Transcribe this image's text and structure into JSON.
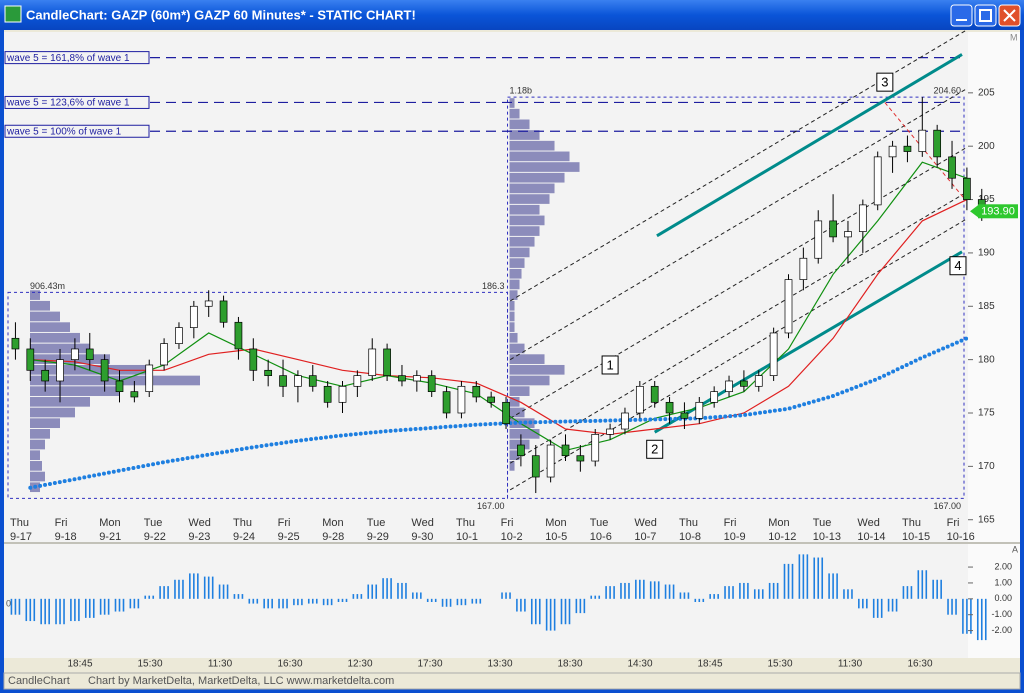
{
  "window": {
    "title": "CandleChart: GAZP (60m*) GAZP 60 Minutes* - STATIC CHART!",
    "corner_mark": "M",
    "panel_mark": "A",
    "panel_zero": "0",
    "status_left": "CandleChart",
    "status_right": "Chart by MarketDelta, MarketDelta, LLC www.marketdelta.com"
  },
  "chart_data": {
    "type": "candlestick",
    "ylim": [
      163.1,
      210.7
    ],
    "yticks": [
      165,
      170,
      175,
      180,
      185,
      190,
      195,
      200,
      205
    ],
    "up_color": "#ffffff",
    "down_color": "#2e9e2e",
    "wick_color": "#000000",
    "days": [
      {
        "day": "Thu",
        "date": "9-17",
        "open": [
          182,
          181,
          179
        ],
        "high": [
          183.5,
          182,
          180
        ],
        "low": [
          180,
          178,
          177
        ],
        "close": [
          181,
          179,
          178
        ],
        "oscillator": [
          -1.0,
          -1.4,
          -1.6
        ]
      },
      {
        "day": "Fri",
        "date": "9-18",
        "open": [
          178,
          180,
          181
        ],
        "high": [
          181,
          182,
          182.5
        ],
        "low": [
          176,
          179,
          179
        ],
        "close": [
          180,
          181,
          180
        ],
        "oscillator": [
          -1.6,
          -1.4,
          -1.2
        ]
      },
      {
        "day": "Mon",
        "date": "9-21",
        "open": [
          180,
          178,
          177
        ],
        "high": [
          180.5,
          179,
          178
        ],
        "low": [
          177,
          176,
          176
        ],
        "close": [
          178,
          177,
          176.5
        ],
        "oscillator": [
          -1.0,
          -0.8,
          -0.6
        ]
      },
      {
        "day": "Tue",
        "date": "9-22",
        "open": [
          177,
          179.5,
          181.5
        ],
        "high": [
          180,
          182,
          183.5
        ],
        "low": [
          176.5,
          179,
          181
        ],
        "close": [
          179.5,
          181.5,
          183
        ],
        "oscillator": [
          0.2,
          0.8,
          1.2
        ]
      },
      {
        "day": "Wed",
        "date": "9-23",
        "open": [
          183,
          185,
          185.5
        ],
        "high": [
          185.5,
          186.5,
          186
        ],
        "low": [
          182,
          184,
          183
        ],
        "close": [
          185,
          185.5,
          183.5
        ],
        "oscillator": [
          1.6,
          1.4,
          0.9
        ]
      },
      {
        "day": "Thu",
        "date": "9-24",
        "open": [
          183.5,
          181,
          179
        ],
        "high": [
          184,
          182,
          180
        ],
        "low": [
          180,
          178,
          177.5
        ],
        "close": [
          181,
          179,
          178.5
        ],
        "oscillator": [
          0.3,
          -0.3,
          -0.6
        ]
      },
      {
        "day": "Fri",
        "date": "9-25",
        "open": [
          178.5,
          177.5,
          178.5
        ],
        "high": [
          180,
          179,
          179.5
        ],
        "low": [
          176.5,
          176,
          177
        ],
        "close": [
          177.5,
          178.5,
          177.5
        ],
        "oscillator": [
          -0.6,
          -0.4,
          -0.3
        ]
      },
      {
        "day": "Mon",
        "date": "9-28",
        "open": [
          177.5,
          176,
          177.5
        ],
        "high": [
          178,
          178,
          179
        ],
        "low": [
          175.5,
          175,
          176.5
        ],
        "close": [
          176,
          177.5,
          178.5
        ],
        "oscillator": [
          -0.4,
          -0.2,
          0.3
        ]
      },
      {
        "day": "Tue",
        "date": "9-29",
        "open": [
          178.5,
          181,
          178.5
        ],
        "high": [
          182,
          181.5,
          179.5
        ],
        "low": [
          178,
          178,
          177.5
        ],
        "close": [
          181,
          178.5,
          178
        ],
        "oscillator": [
          0.9,
          1.3,
          1.0
        ]
      },
      {
        "day": "Wed",
        "date": "9-30",
        "open": [
          178,
          178.5,
          177
        ],
        "high": [
          179,
          179,
          177.5
        ],
        "low": [
          177,
          176.5,
          174.5
        ],
        "close": [
          178.5,
          177,
          175
        ],
        "oscillator": [
          0.4,
          -0.2,
          -0.5
        ]
      },
      {
        "day": "Thu",
        "date": "10-1",
        "open": [
          175,
          177.5,
          176.5
        ],
        "high": [
          178,
          178,
          177
        ],
        "low": [
          174.5,
          176,
          175.5
        ],
        "close": [
          177.5,
          176.5,
          176
        ],
        "oscillator": [
          -0.4,
          -0.3,
          0.0
        ]
      },
      {
        "day": "Fri",
        "date": "10-2",
        "open": [
          176,
          172,
          171
        ],
        "high": [
          176.5,
          173,
          172
        ],
        "low": [
          173.5,
          170,
          167.5
        ],
        "close": [
          174,
          171,
          169
        ],
        "oscillator": [
          0.4,
          -0.8,
          -1.6
        ]
      },
      {
        "day": "Mon",
        "date": "10-5",
        "open": [
          169,
          172,
          171
        ],
        "high": [
          172.5,
          173,
          172
        ],
        "low": [
          168.5,
          170.5,
          169.5
        ],
        "close": [
          172,
          171,
          170.5
        ],
        "oscillator": [
          -2.0,
          -1.6,
          -0.9
        ]
      },
      {
        "day": "Tue",
        "date": "10-6",
        "open": [
          170.5,
          173,
          173.5
        ],
        "high": [
          173.5,
          174,
          175.5
        ],
        "low": [
          170,
          172.5,
          173
        ],
        "close": [
          173,
          173.5,
          175
        ],
        "oscillator": [
          0.2,
          0.8,
          1.0
        ]
      },
      {
        "day": "Wed",
        "date": "10-7",
        "open": [
          175,
          177.5,
          176
        ],
        "high": [
          178,
          178,
          176.5
        ],
        "low": [
          174.5,
          175.5,
          174
        ],
        "close": [
          177.5,
          176,
          175
        ],
        "oscillator": [
          1.2,
          1.1,
          0.9
        ]
      },
      {
        "day": "Thu",
        "date": "10-8",
        "open": [
          175,
          174.5,
          176
        ],
        "high": [
          176,
          176.5,
          177.5
        ],
        "low": [
          173.5,
          174,
          175.5
        ],
        "close": [
          174.5,
          176,
          177
        ],
        "oscillator": [
          0.4,
          -0.2,
          0.3
        ]
      },
      {
        "day": "Fri",
        "date": "10-9",
        "open": [
          177,
          178,
          177.5
        ],
        "high": [
          178.5,
          179,
          179
        ],
        "low": [
          176.5,
          177,
          177
        ],
        "close": [
          178,
          177.5,
          178.5
        ],
        "oscillator": [
          0.8,
          1.0,
          0.6
        ]
      },
      {
        "day": "Mon",
        "date": "10-12",
        "open": [
          178.5,
          182.5,
          187.5
        ],
        "high": [
          183,
          188,
          190.5
        ],
        "low": [
          178,
          182,
          186.5
        ],
        "close": [
          182.5,
          187.5,
          189.5
        ],
        "oscillator": [
          1.0,
          2.2,
          2.8
        ]
      },
      {
        "day": "Tue",
        "date": "10-13",
        "open": [
          189.5,
          193,
          191.5
        ],
        "high": [
          194,
          195.5,
          193
        ],
        "low": [
          189,
          191,
          189
        ],
        "close": [
          193,
          191.5,
          192
        ],
        "oscillator": [
          2.6,
          1.6,
          0.6
        ]
      },
      {
        "day": "Wed",
        "date": "10-14",
        "open": [
          192,
          194.5,
          199
        ],
        "high": [
          195,
          199.5,
          200.5
        ],
        "low": [
          190,
          194,
          197.5
        ],
        "close": [
          194.5,
          199,
          200
        ],
        "oscillator": [
          -0.6,
          -1.2,
          -0.8
        ]
      },
      {
        "day": "Thu",
        "date": "10-15",
        "open": [
          200,
          199.5,
          201.5
        ],
        "high": [
          201,
          204.6,
          202
        ],
        "low": [
          198.5,
          199,
          198
        ],
        "close": [
          199.5,
          201.5,
          199
        ],
        "oscillator": [
          0.8,
          1.8,
          1.2
        ]
      },
      {
        "day": "Fri",
        "date": "10-16",
        "open": [
          199,
          197,
          195
        ],
        "high": [
          200.5,
          198,
          196
        ],
        "low": [
          196,
          194,
          193
        ],
        "close": [
          197,
          195,
          193.9
        ],
        "oscillator": [
          -1.0,
          -2.2,
          -2.6
        ]
      }
    ],
    "moving_averages": [
      {
        "color": "#e02020",
        "style": "solid",
        "values": [
          180,
          179.8,
          179,
          179,
          180.5,
          181,
          180,
          179,
          178.5,
          178.3,
          177.8,
          176,
          173.5,
          173,
          173.5,
          174,
          175,
          177.5,
          182,
          188,
          193,
          195
        ]
      },
      {
        "color": "#109010",
        "style": "solid",
        "values": [
          180,
          179.5,
          178,
          179.5,
          182.5,
          180.5,
          178.5,
          177.5,
          178.5,
          177.8,
          176.8,
          174,
          171.5,
          172.5,
          174.5,
          175.5,
          177,
          181,
          188,
          193,
          198.5,
          197
        ]
      },
      {
        "color": "#1e7fe0",
        "style": "dotted",
        "values": [
          168,
          168.8,
          169.6,
          170.4,
          171.1,
          171.8,
          172.4,
          172.9,
          173.3,
          173.6,
          173.9,
          174.1,
          174.2,
          174.3,
          174.4,
          174.5,
          174.8,
          175.4,
          176.6,
          178.2,
          180.2,
          182
        ]
      }
    ],
    "last_price": {
      "value": 193.9,
      "label": "193.90",
      "color": "#2ec82e"
    },
    "wave_lines": [
      {
        "label": "wave 5 = 161,8% of wave 1",
        "price": 208.3
      },
      {
        "label": "wave 5 = 123,6% of wave 1",
        "price": 204.1
      },
      {
        "label": "wave 5 = 100% of wave 1",
        "price": 201.4
      }
    ],
    "wave_labels": [
      {
        "label": "1",
        "day": 13.5,
        "price": 179.5
      },
      {
        "label": "2",
        "day": 14.5,
        "price": 171.6
      },
      {
        "label": "3",
        "day": 19.66,
        "price": 206
      },
      {
        "label": "4",
        "day": 21.3,
        "price": 188.8
      }
    ],
    "trendlines": [
      {
        "color": "#008b8b",
        "style": "solid",
        "x": [
          14.55,
          21.39
        ],
        "y": [
          191.6,
          208.6
        ]
      },
      {
        "color": "#008b8b",
        "style": "solid",
        "x": [
          14.5,
          21.39
        ],
        "y": [
          173.2,
          190.1
        ]
      },
      {
        "color": "#222222",
        "style": "dashed",
        "x": [
          11.26,
          21.46
        ],
        "y": [
          185.5,
          210.8
        ]
      },
      {
        "color": "#222222",
        "style": "dashed",
        "x": [
          11.26,
          21.46
        ],
        "y": [
          180,
          205.3
        ]
      },
      {
        "color": "#222222",
        "style": "dashed",
        "x": [
          11.26,
          21.46
        ],
        "y": [
          174.5,
          199.8
        ]
      },
      {
        "color": "#222222",
        "style": "dashed",
        "x": [
          11.26,
          21.46
        ],
        "y": [
          170.3,
          195.6
        ]
      },
      {
        "color": "#222222",
        "style": "dashed",
        "x": [
          11.26,
          21.46
        ],
        "y": [
          167.8,
          193.1
        ]
      },
      {
        "color": "#e03030",
        "style": "dashed",
        "x": [
          19.66,
          21.46
        ],
        "y": [
          204.1,
          195
        ]
      }
    ],
    "profiles": [
      {
        "volume_label": "906.43m",
        "high": 186.3,
        "high_label": "186.3",
        "low": 167,
        "low_label": "167.00",
        "color": "#6a6aa8",
        "bin_prices": [
          168,
          169,
          170,
          171,
          172,
          173,
          174,
          175,
          176,
          177,
          178,
          179,
          180,
          181,
          182,
          183,
          184,
          185,
          186
        ],
        "volumes": [
          10,
          15,
          12,
          10,
          15,
          20,
          30,
          45,
          60,
          90,
          170,
          120,
          80,
          60,
          50,
          40,
          30,
          20,
          10
        ]
      },
      {
        "volume_label": "1.18b",
        "high": 204.6,
        "high_label": "204.60",
        "low": 167,
        "low_label": "167.00",
        "color": "#6a6aa8",
        "bin_prices": [
          170,
          171,
          172,
          173,
          174,
          175,
          176,
          177,
          178,
          179,
          180,
          181,
          182,
          183,
          184,
          185,
          186,
          187,
          188,
          189,
          190,
          191,
          192,
          193,
          194,
          195,
          196,
          197,
          198,
          199,
          200,
          201,
          202,
          203,
          204
        ],
        "volumes": [
          5,
          10,
          20,
          30,
          25,
          15,
          10,
          20,
          40,
          55,
          35,
          15,
          8,
          5,
          5,
          5,
          8,
          10,
          12,
          15,
          20,
          25,
          30,
          35,
          30,
          40,
          45,
          55,
          70,
          60,
          45,
          30,
          20,
          10,
          5
        ]
      }
    ],
    "oscillator_color": "#1e7fe0",
    "oscillator_ylim": [
      -3.6,
      3.2
    ],
    "oscillator_ticks": [
      {
        "value": 2,
        "label": "2.00"
      },
      {
        "value": 1,
        "label": "1.00"
      },
      {
        "value": 0,
        "label": "0.00"
      },
      {
        "value": -1,
        "label": "-1.00"
      },
      {
        "value": -2,
        "label": "-2.00"
      }
    ],
    "time_labels": [
      "18:45",
      "15:30",
      "11:30",
      "16:30",
      "12:30",
      "17:30",
      "13:30",
      "18:30",
      "14:30",
      "18:45",
      "15:30",
      "11:30",
      "16:30"
    ]
  }
}
